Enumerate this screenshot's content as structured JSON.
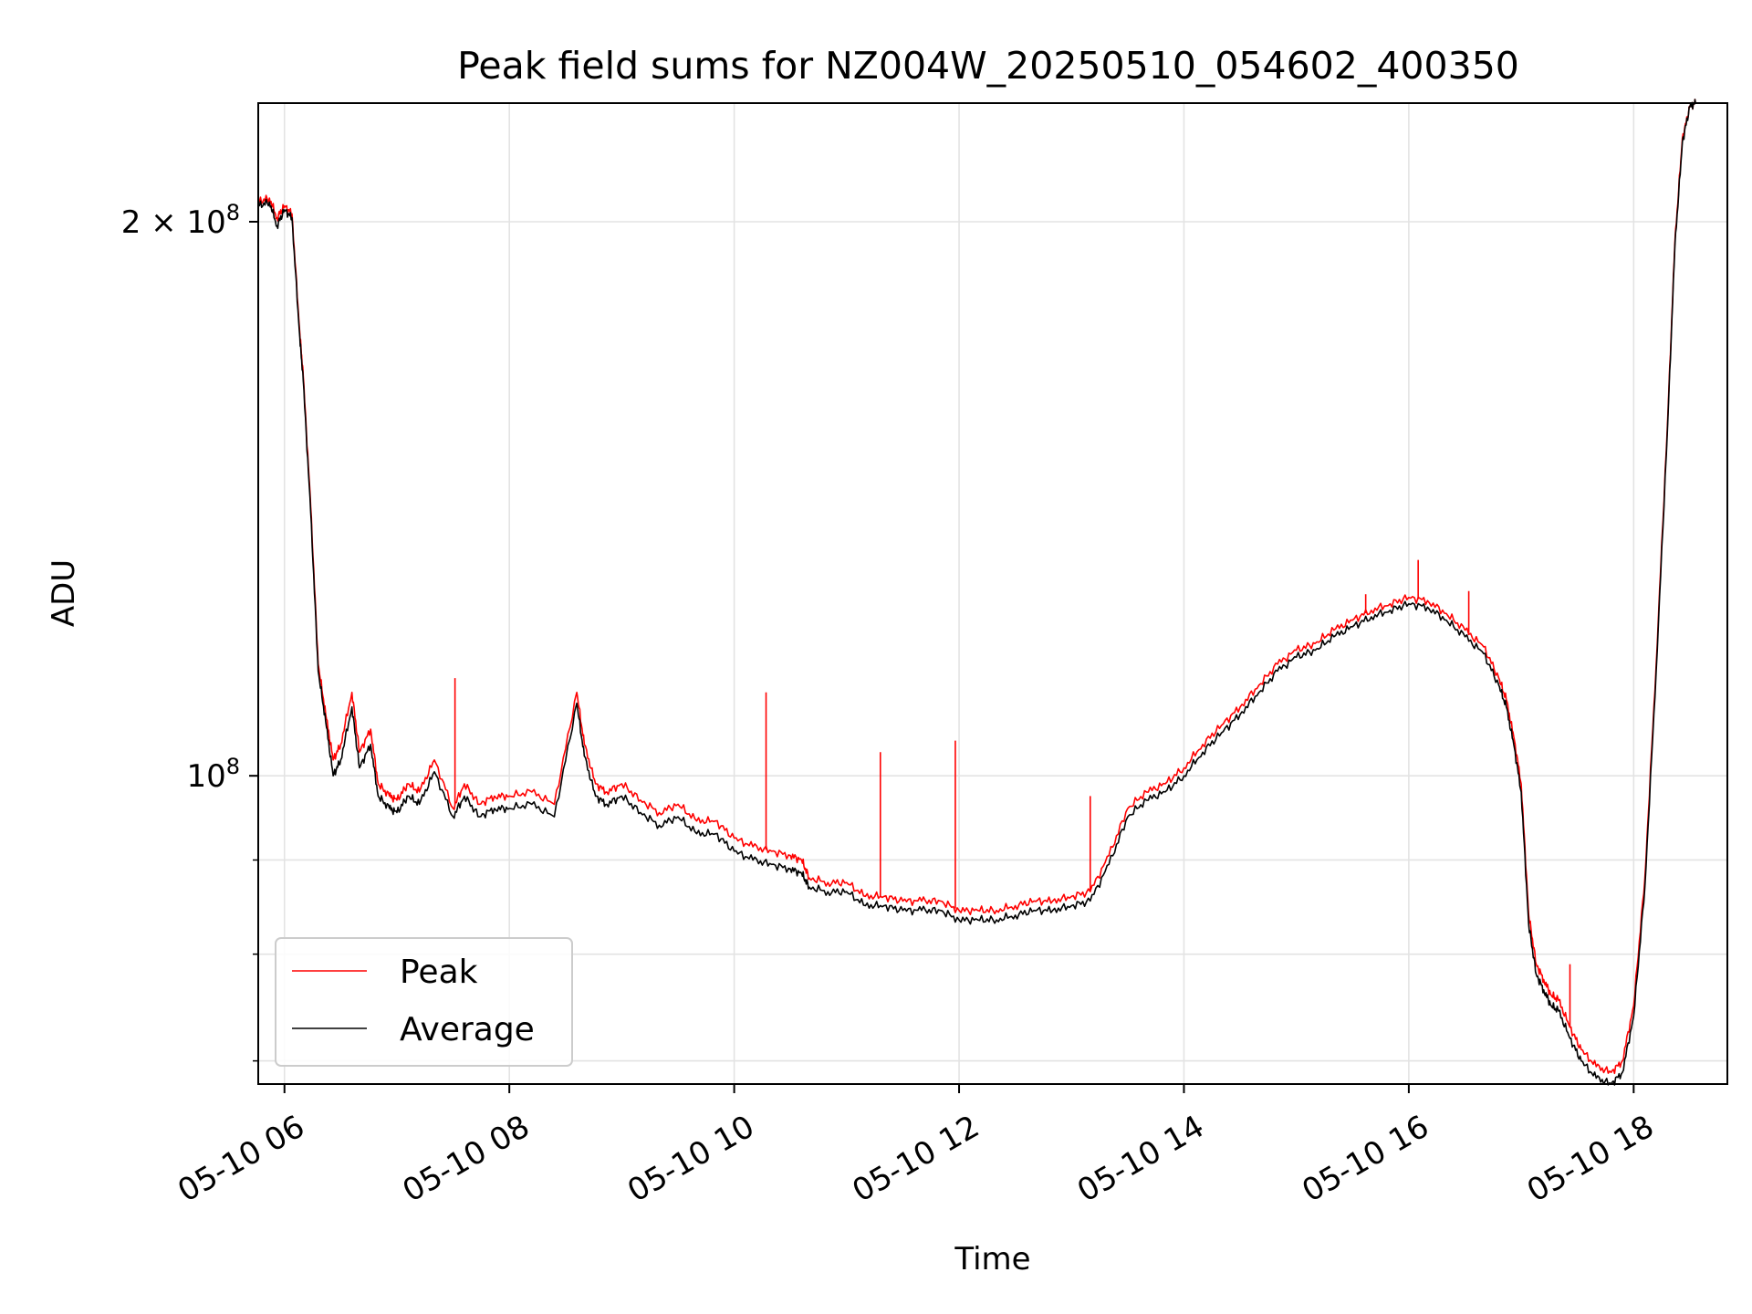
{
  "chart_data": {
    "type": "line",
    "title": "Peak field sums for NZ004W_20250510_054602_400350",
    "xlabel": "Time",
    "ylabel": "ADU",
    "yscale": "log",
    "grid": true,
    "legend_position": "lower-left",
    "xlim": [
      "2025-05-10 05:46",
      "2025-05-10 18:50"
    ],
    "ylim": [
      68000000,
      232000000
    ],
    "x_ticks": [
      {
        "value": "2025-05-10 06:00",
        "label": "05-10 06"
      },
      {
        "value": "2025-05-10 08:00",
        "label": "05-10 08"
      },
      {
        "value": "2025-05-10 10:00",
        "label": "05-10 10"
      },
      {
        "value": "2025-05-10 12:00",
        "label": "05-10 12"
      },
      {
        "value": "2025-05-10 14:00",
        "label": "05-10 14"
      },
      {
        "value": "2025-05-10 16:00",
        "label": "05-10 16"
      },
      {
        "value": "2025-05-10 18:00",
        "label": "05-10 18"
      }
    ],
    "y_major_ticks": [
      {
        "value": 100000000,
        "base": "10",
        "exp": "8"
      },
      {
        "value": 200000000,
        "base": "2 × 10",
        "exp": "8"
      }
    ],
    "y_minor_ticks": [
      70000000,
      80000000,
      90000000
    ],
    "series": [
      {
        "name": "Peak",
        "color": "#ff0000",
        "x": [
          "05:46",
          "05:52",
          "05:56",
          "06:00",
          "06:04",
          "06:08",
          "06:10",
          "06:14",
          "06:18",
          "06:22",
          "06:26",
          "06:30",
          "06:36",
          "06:40",
          "06:46",
          "06:50",
          "06:56",
          "07:00",
          "07:06",
          "07:12",
          "07:20",
          "07:30",
          "07:36",
          "07:44",
          "07:52",
          "08:00",
          "08:12",
          "08:24",
          "08:36",
          "08:40",
          "08:46",
          "08:52",
          "09:00",
          "09:10",
          "09:20",
          "09:30",
          "09:40",
          "09:50",
          "10:00",
          "10:10",
          "10:20",
          "10:30",
          "10:36",
          "10:40",
          "10:50",
          "11:00",
          "11:10",
          "11:20",
          "11:30",
          "11:40",
          "11:50",
          "12:00",
          "12:10",
          "12:20",
          "12:30",
          "12:40",
          "12:50",
          "13:00",
          "13:10",
          "13:20",
          "13:30",
          "13:40",
          "13:50",
          "14:00",
          "14:10",
          "14:20",
          "14:30",
          "14:40",
          "14:50",
          "15:00",
          "15:10",
          "15:20",
          "15:30",
          "15:40",
          "15:50",
          "16:00",
          "16:10",
          "16:20",
          "16:30",
          "16:40",
          "16:48",
          "16:52",
          "16:56",
          "17:00",
          "17:04",
          "17:08",
          "17:12",
          "17:16",
          "17:20",
          "17:26",
          "17:32",
          "17:40",
          "17:48",
          "17:54",
          "18:00",
          "18:06",
          "18:12",
          "18:18",
          "18:22",
          "18:26",
          "18:30",
          "18:33"
        ],
        "y": [
          205000000,
          206000000,
          201000000,
          204000000,
          202000000,
          175000000,
          165000000,
          140000000,
          115000000,
          108000000,
          102000000,
          104000000,
          111000000,
          103000000,
          106000000,
          99000000,
          97500000,
          97000000,
          99000000,
          98000000,
          102000000,
          96000000,
          99000000,
          96500000,
          97500000,
          97500000,
          98000000,
          96500000,
          111000000,
          104000000,
          99000000,
          98000000,
          99000000,
          97000000,
          95500000,
          96500000,
          94500000,
          94500000,
          92500000,
          91500000,
          91000000,
          90500000,
          90000000,
          88000000,
          87500000,
          87500000,
          86000000,
          86000000,
          85500000,
          85500000,
          85500000,
          84500000,
          84500000,
          84500000,
          85000000,
          85500000,
          85500000,
          86000000,
          86500000,
          90500000,
          96000000,
          98000000,
          99000000,
          101000000,
          104000000,
          106500000,
          109000000,
          112000000,
          115000000,
          117000000,
          118000000,
          120000000,
          121500000,
          123000000,
          124000000,
          125000000,
          124500000,
          122500000,
          120000000,
          117500000,
          113000000,
          110000000,
          105000000,
          99000000,
          84000000,
          79000000,
          77500000,
          76000000,
          75500000,
          73000000,
          71000000,
          69500000,
          69000000,
          70000000,
          75000000,
          88000000,
          115000000,
          155000000,
          195000000,
          222000000,
          231000000,
          232000000
        ]
      },
      {
        "name": "Average",
        "color": "#000000",
        "x": [
          "05:46",
          "05:52",
          "05:56",
          "06:00",
          "06:04",
          "06:08",
          "06:10",
          "06:14",
          "06:18",
          "06:22",
          "06:26",
          "06:30",
          "06:36",
          "06:40",
          "06:46",
          "06:50",
          "06:56",
          "07:00",
          "07:06",
          "07:12",
          "07:20",
          "07:30",
          "07:36",
          "07:44",
          "07:52",
          "08:00",
          "08:12",
          "08:24",
          "08:36",
          "08:40",
          "08:46",
          "08:52",
          "09:00",
          "09:10",
          "09:20",
          "09:30",
          "09:40",
          "09:50",
          "10:00",
          "10:10",
          "10:20",
          "10:30",
          "10:36",
          "10:40",
          "10:50",
          "11:00",
          "11:10",
          "11:20",
          "11:30",
          "11:40",
          "11:50",
          "12:00",
          "12:10",
          "12:20",
          "12:30",
          "12:40",
          "12:50",
          "13:00",
          "13:10",
          "13:20",
          "13:30",
          "13:40",
          "13:50",
          "14:00",
          "14:10",
          "14:20",
          "14:30",
          "14:40",
          "14:50",
          "15:00",
          "15:10",
          "15:20",
          "15:30",
          "15:40",
          "15:50",
          "16:00",
          "16:10",
          "16:20",
          "16:30",
          "16:40",
          "16:48",
          "16:52",
          "16:56",
          "17:00",
          "17:04",
          "17:08",
          "17:12",
          "17:16",
          "17:20",
          "17:26",
          "17:32",
          "17:40",
          "17:48",
          "17:54",
          "18:00",
          "18:06",
          "18:12",
          "18:18",
          "18:22",
          "18:26",
          "18:30",
          "18:33"
        ],
        "y": [
          204000000,
          205000000,
          199000000,
          203000000,
          201000000,
          174000000,
          164000000,
          139000000,
          114000000,
          107000000,
          100000000,
          102000000,
          109000000,
          101000000,
          104000000,
          97500000,
          96000000,
          95500000,
          97500000,
          96500000,
          100500000,
          95000000,
          97500000,
          95000000,
          96000000,
          96000000,
          96500000,
          95000000,
          109500000,
          102500000,
          97500000,
          96500000,
          97500000,
          95500000,
          94000000,
          95000000,
          93000000,
          93000000,
          91000000,
          90000000,
          89500000,
          89000000,
          88500000,
          87000000,
          86500000,
          86500000,
          85000000,
          85000000,
          84500000,
          84500000,
          84500000,
          83500000,
          83500000,
          83500000,
          84000000,
          84500000,
          84500000,
          85000000,
          85500000,
          89500000,
          95000000,
          97000000,
          98000000,
          100000000,
          103000000,
          105500000,
          108000000,
          111000000,
          114000000,
          116000000,
          117000000,
          119000000,
          120500000,
          122000000,
          123000000,
          124000000,
          123500000,
          121500000,
          119000000,
          116500000,
          112000000,
          109000000,
          104000000,
          98000000,
          83000000,
          78000000,
          76500000,
          75000000,
          74500000,
          72000000,
          70000000,
          68500000,
          68000000,
          69000000,
          74000000,
          87000000,
          114000000,
          154000000,
          194000000,
          221000000,
          231000000,
          232000000
        ]
      }
    ],
    "spikes": [
      {
        "series": "Peak",
        "x": "07:31",
        "y": 113000000
      },
      {
        "series": "Peak",
        "x": "10:17",
        "y": 111000000
      },
      {
        "series": "Peak",
        "x": "11:18",
        "y": 103000000
      },
      {
        "series": "Peak",
        "x": "11:58",
        "y": 104500000
      },
      {
        "series": "Peak",
        "x": "13:10",
        "y": 97500000
      },
      {
        "series": "Peak",
        "x": "15:37",
        "y": 125500000
      },
      {
        "series": "Peak",
        "x": "16:05",
        "y": 131000000
      },
      {
        "series": "Peak",
        "x": "16:32",
        "y": 126000000
      },
      {
        "series": "Peak",
        "x": "17:26",
        "y": 79000000
      }
    ]
  }
}
